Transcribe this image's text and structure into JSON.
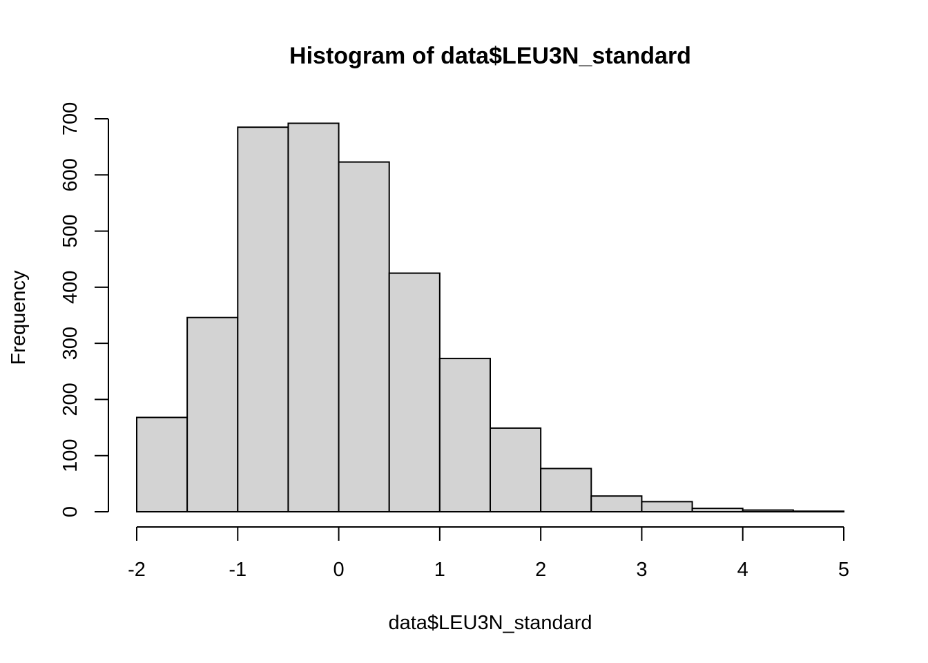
{
  "chart_data": {
    "type": "bar",
    "title": "Histogram of data$LEU3N_standard",
    "xlabel": "data$LEU3N_standard",
    "ylabel": "Frequency",
    "bins": [
      {
        "from": -2.0,
        "to": -1.5,
        "count": 168
      },
      {
        "from": -1.5,
        "to": -1.0,
        "count": 346
      },
      {
        "from": -1.0,
        "to": -0.5,
        "count": 685
      },
      {
        "from": -0.5,
        "to": 0.0,
        "count": 692
      },
      {
        "from": 0.0,
        "to": 0.5,
        "count": 623
      },
      {
        "from": 0.5,
        "to": 1.0,
        "count": 425
      },
      {
        "from": 1.0,
        "to": 1.5,
        "count": 273
      },
      {
        "from": 1.5,
        "to": 2.0,
        "count": 149
      },
      {
        "from": 2.0,
        "to": 2.5,
        "count": 77
      },
      {
        "from": 2.5,
        "to": 3.0,
        "count": 28
      },
      {
        "from": 3.0,
        "to": 3.5,
        "count": 18
      },
      {
        "from": 3.5,
        "to": 4.0,
        "count": 6
      },
      {
        "from": 4.0,
        "to": 4.5,
        "count": 3
      },
      {
        "from": 4.5,
        "to": 5.0,
        "count": 1
      }
    ],
    "xlim": [
      -2,
      5
    ],
    "ylim": [
      0,
      700
    ],
    "xticks": [
      "-2",
      "-1",
      "0",
      "1",
      "2",
      "3",
      "4",
      "5"
    ],
    "yticks": [
      "0",
      "100",
      "200",
      "300",
      "400",
      "500",
      "600",
      "700"
    ],
    "bar_color": "#d3d3d3",
    "grid": false
  }
}
